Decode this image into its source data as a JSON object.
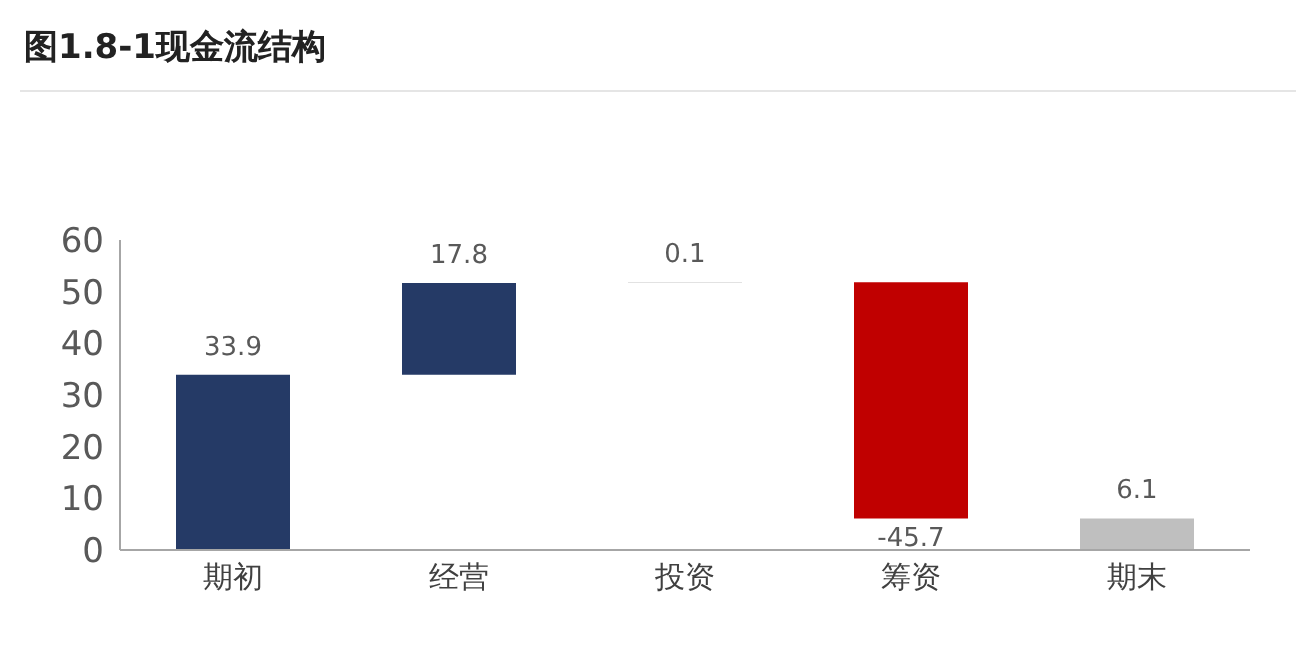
{
  "chart_data": {
    "type": "bar",
    "title": "图1.8-1现金流结构",
    "categories": [
      "期初",
      "经营",
      "投资",
      "筹资",
      "期末"
    ],
    "values": [
      33.9,
      17.8,
      0.1,
      -45.7,
      6.1
    ],
    "base": [
      0,
      33.9,
      51.7,
      51.8,
      0
    ],
    "colors": [
      "#253a66",
      "#253a66",
      "#d9d9d9",
      "#c00000",
      "#bfbfbf"
    ],
    "ylim": [
      0,
      60
    ],
    "yticks": [
      0,
      10,
      20,
      30,
      40,
      50,
      60
    ],
    "grid": false,
    "legend": false,
    "data_labels": true
  }
}
